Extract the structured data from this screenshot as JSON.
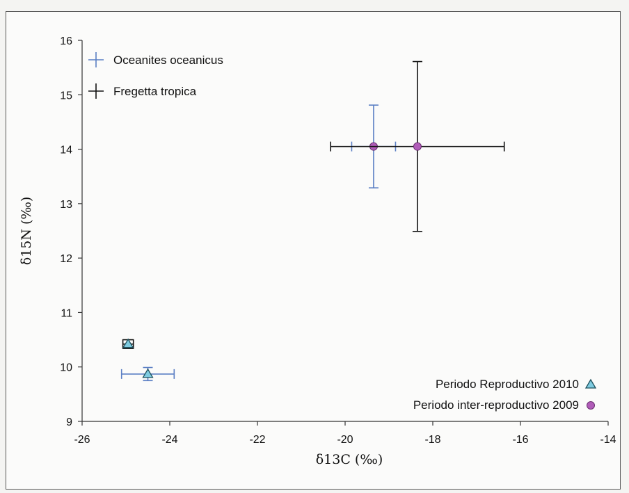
{
  "chart_data": {
    "type": "scatter",
    "xlabel": "δ13C (‰)",
    "ylabel": "δ15N (‰)",
    "xlim": [
      -26,
      -14
    ],
    "ylim": [
      9,
      16
    ],
    "xticks": [
      -26,
      -24,
      -22,
      -20,
      -18,
      -16,
      -14
    ],
    "yticks": [
      9,
      10,
      11,
      12,
      13,
      14,
      15,
      16
    ],
    "grid": false,
    "legend": {
      "species": [
        {
          "name": "Oceanites oceanicus",
          "color": "#5b7fc4"
        },
        {
          "name": "Fregetta tropica",
          "color": "#111111"
        }
      ],
      "periods": [
        {
          "name": "Periodo Reproductivo 2010",
          "marker": "triangle",
          "color": "#7ecbe0"
        },
        {
          "name": "Periodo inter-reproductivo 2009",
          "marker": "circle",
          "color": "#b05cb8"
        }
      ]
    },
    "points": [
      {
        "species": "Oceanites oceanicus",
        "period": "Periodo Reproductivo 2010",
        "x": -24.5,
        "y": 9.87,
        "xerr": 0.6,
        "yerr": 0.12
      },
      {
        "species": "Fregetta tropica",
        "period": "Periodo Reproductivo 2010",
        "x": -24.95,
        "y": 10.42,
        "xerr": 0.12,
        "yerr": 0.08
      },
      {
        "species": "Oceanites oceanicus",
        "period": "Periodo inter-reproductivo 2009",
        "x": -19.35,
        "y": 14.05,
        "xerr": 0.5,
        "yerr": 0.76
      },
      {
        "species": "Fregetta tropica",
        "period": "Periodo inter-reproductivo 2009",
        "x": -18.35,
        "y": 14.05,
        "xerr": 1.98,
        "yerr": 1.56
      }
    ]
  }
}
